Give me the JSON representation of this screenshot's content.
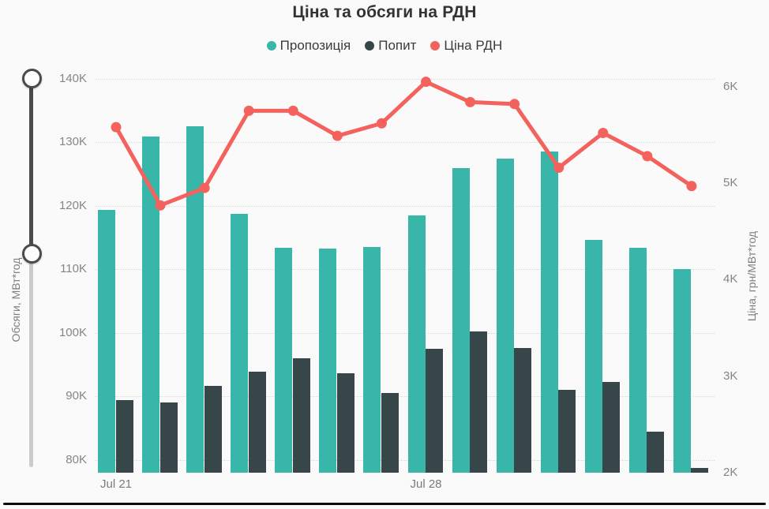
{
  "title": "Ціна та обсяги на РДН",
  "legend": [
    {
      "label": "Пропозиція",
      "color": "#38b6aa"
    },
    {
      "label": "Попит",
      "color": "#374649"
    },
    {
      "label": "Ціна РДН",
      "color": "#f4625d"
    }
  ],
  "chart_data": {
    "type": "combo-bar-line",
    "title": "Ціна та обсяги на РДН",
    "num_groups": 14,
    "x_tick_labels": [
      {
        "index": 0,
        "label": "Jul 21"
      },
      {
        "index": 7,
        "label": "Jul 28"
      }
    ],
    "left_axis": {
      "title": "Обсяги, МВт*год",
      "ticks": [
        "140K",
        "130K",
        "120K",
        "110K",
        "100K",
        "90K",
        "80K"
      ],
      "tick_values": [
        140000,
        130000,
        120000,
        110000,
        100000,
        90000,
        80000
      ],
      "range": [
        78000,
        140000
      ]
    },
    "right_axis": {
      "title": "Ціна, грн/МВт*год",
      "ticks": [
        "6K",
        "5K",
        "4K",
        "3K",
        "2K"
      ],
      "tick_values": [
        6000,
        5000,
        4000,
        3000,
        2000
      ],
      "range": [
        2000,
        6080
      ]
    },
    "grid": "horizontal-dotted",
    "legend_position": "top-center",
    "series": [
      {
        "name": "Пропозиція",
        "type": "bar",
        "axis": "left",
        "color": "#38b6aa",
        "values": [
          119400,
          130900,
          132500,
          118700,
          113400,
          113300,
          113500,
          118500,
          126000,
          127400,
          128600,
          114700,
          113400,
          110100
        ]
      },
      {
        "name": "Попит",
        "type": "bar",
        "axis": "left",
        "color": "#374649",
        "values": [
          89400,
          89100,
          91700,
          93900,
          96000,
          93700,
          90600,
          97500,
          100200,
          97600,
          91100,
          92300,
          84400,
          78800
        ]
      },
      {
        "name": "Ціна РДН",
        "type": "line",
        "axis": "right",
        "color": "#f4625d",
        "values": [
          5580,
          4770,
          4950,
          5750,
          5750,
          5490,
          5620,
          6050,
          5840,
          5820,
          5160,
          5520,
          5280,
          4970
        ]
      }
    ]
  },
  "slider": {
    "orientation": "vertical",
    "handle_fractions": [
      0.0,
      0.452
    ]
  }
}
